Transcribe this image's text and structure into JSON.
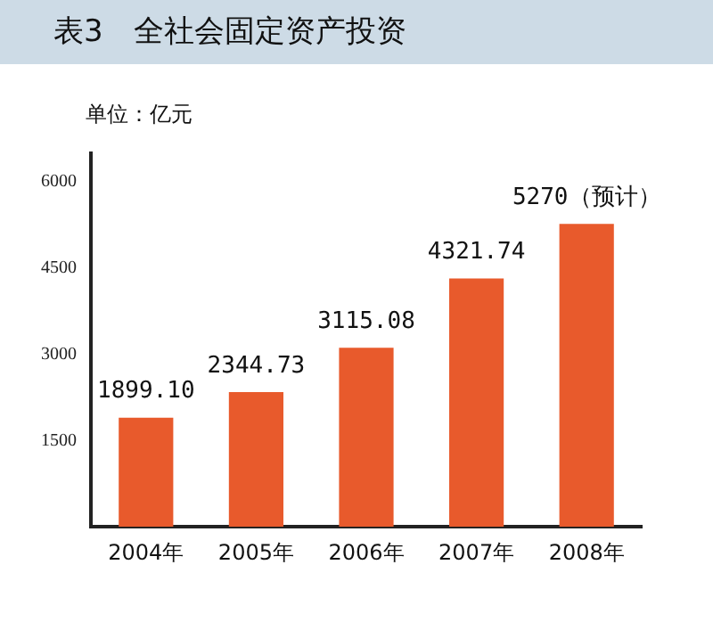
{
  "chart_data": {
    "type": "bar",
    "title": "表3　全社会固定资产投资",
    "ylabel": "单位：亿元",
    "categories": [
      "2004年",
      "2005年",
      "2006年",
      "2007年",
      "2008年"
    ],
    "values": [
      1899.1,
      2344.73,
      3115.08,
      4321.74,
      5270
    ],
    "value_labels": [
      "1899.10",
      "2344.73",
      "3115.08",
      "4321.74",
      "5270（预计）"
    ],
    "color": "#e85a2c",
    "ylim": [
      0,
      6500
    ],
    "yticks": [
      1500,
      3000,
      4500,
      6000
    ],
    "grid": false,
    "legend": false
  }
}
